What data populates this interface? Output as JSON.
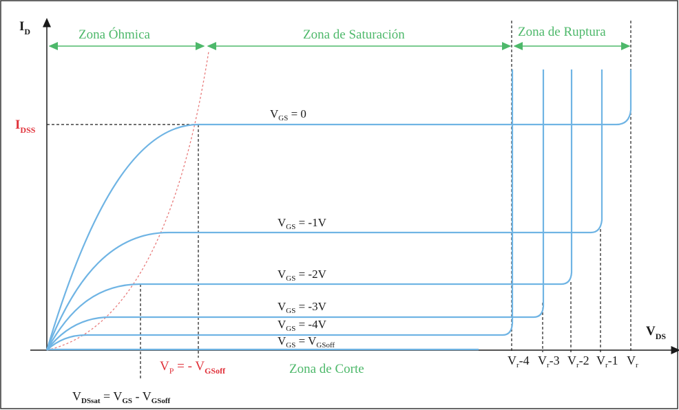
{
  "axes": {
    "y_label": "I",
    "y_sub": "D",
    "x_label": "V",
    "x_sub": "DS",
    "idss_label": "I",
    "idss_sub": "DSS"
  },
  "zones": {
    "ohmic": "Zona Óhmica",
    "saturation": "Zona de Saturación",
    "breakdown": "Zona de Ruptura",
    "cutoff": "Zona de Corte"
  },
  "curves": [
    {
      "v": "V",
      "sub": "GS",
      "rest": " = 0"
    },
    {
      "v": "V",
      "sub": "GS",
      "rest": " = -1V"
    },
    {
      "v": "V",
      "sub": "GS",
      "rest": " = -2V"
    },
    {
      "v": "V",
      "sub": "GS",
      "rest": " = -3V"
    },
    {
      "v": "V",
      "sub": "GS",
      "rest": " = -4V"
    },
    {
      "v": "V",
      "sub": "GS",
      "rest": " = V",
      "sub2": "GSoff"
    }
  ],
  "pinch": {
    "v": "V",
    "sub": "P",
    "mid": " = - V",
    "sub2": "GSoff"
  },
  "vdssat": {
    "v1": "V",
    "s1": "DSsat",
    "eq": " = V",
    "s2": "GS",
    "minus": " - V",
    "s3": "GSoff"
  },
  "breakdown_ticks": [
    {
      "v": "V",
      "sub": "r",
      "rest": "-4"
    },
    {
      "v": "V",
      "sub": "r",
      "rest": "-3"
    },
    {
      "v": "V",
      "sub": "r",
      "rest": "-2"
    },
    {
      "v": "V",
      "sub": "r",
      "rest": "-1"
    },
    {
      "v": "V",
      "sub": "r",
      "rest": ""
    }
  ],
  "colors": {
    "curve": "#6fb4e4",
    "zone_text": "#4db86a",
    "red": "#e0313a",
    "frame": "#333333"
  }
}
